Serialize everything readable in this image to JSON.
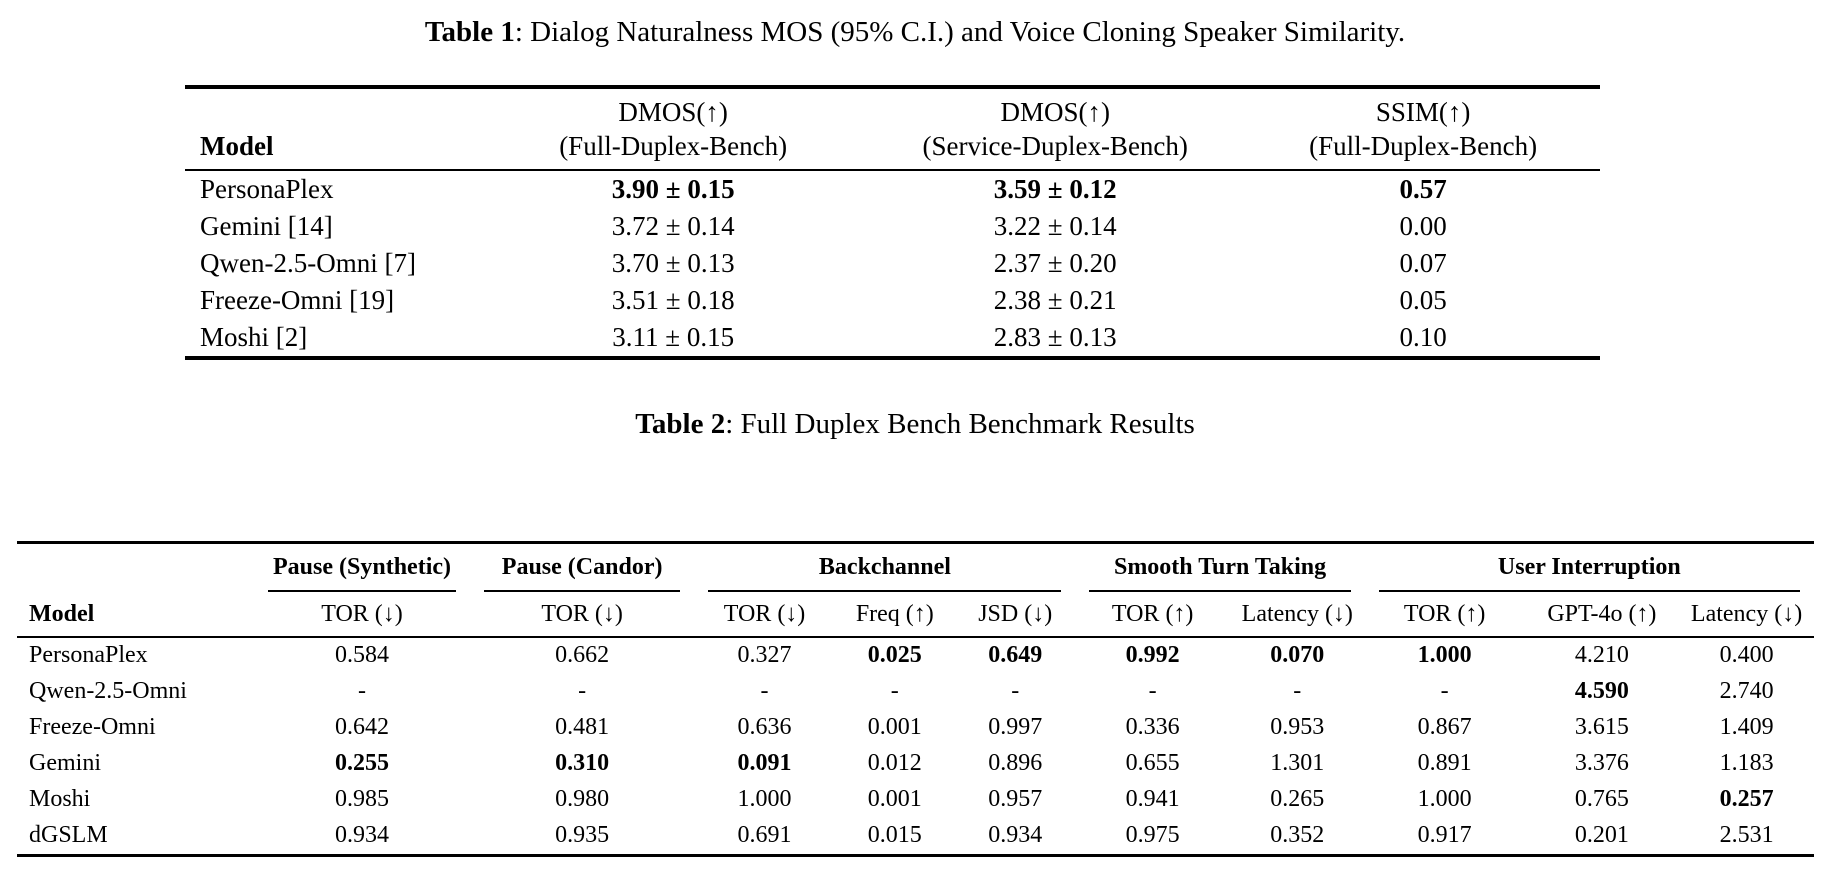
{
  "page": {
    "background": "#ffffff",
    "text_color": "#000000"
  },
  "table1": {
    "caption": {
      "label": "Table 1",
      "rest": ": Dialog Naturalness MOS (95% C.I.) and Voice Cloning Speaker Similarity."
    },
    "header": {
      "model": "Model",
      "cols": [
        {
          "line1": "DMOS(↑)",
          "line2": "(Full-Duplex-Bench)"
        },
        {
          "line1": "DMOS(↑)",
          "line2": "(Service-Duplex-Bench)"
        },
        {
          "line1": "SSIM(↑)",
          "line2": "(Full-Duplex-Bench)"
        }
      ]
    },
    "rows": [
      {
        "model": "PersonaPlex",
        "cells": [
          {
            "text": "3.90 ± 0.15",
            "bold": true
          },
          {
            "text": "3.59 ± 0.12",
            "bold": true
          },
          {
            "text": "0.57",
            "bold": true
          }
        ]
      },
      {
        "model": "Gemini [14]",
        "cells": [
          {
            "text": "3.72 ± 0.14",
            "bold": false
          },
          {
            "text": "3.22 ± 0.14",
            "bold": false
          },
          {
            "text": "0.00",
            "bold": false
          }
        ]
      },
      {
        "model": "Qwen-2.5-Omni [7]",
        "cells": [
          {
            "text": "3.70 ± 0.13",
            "bold": false
          },
          {
            "text": "2.37 ± 0.20",
            "bold": false
          },
          {
            "text": "0.07",
            "bold": false
          }
        ]
      },
      {
        "model": "Freeze-Omni [19]",
        "cells": [
          {
            "text": "3.51 ± 0.18",
            "bold": false
          },
          {
            "text": "2.38 ± 0.21",
            "bold": false
          },
          {
            "text": "0.05",
            "bold": false
          }
        ]
      },
      {
        "model": "Moshi [2]",
        "cells": [
          {
            "text": "3.11 ± 0.15",
            "bold": false
          },
          {
            "text": "2.83 ± 0.13",
            "bold": false
          },
          {
            "text": "0.10",
            "bold": false
          }
        ]
      }
    ]
  },
  "table2": {
    "caption": {
      "label": "Table 2",
      "rest": ": Full Duplex Bench Benchmark Results"
    },
    "header": {
      "model": "Model",
      "groups": [
        {
          "label": "Pause (Synthetic)"
        },
        {
          "label": "Pause (Candor)"
        },
        {
          "label": "Backchannel"
        },
        {
          "label": "Smooth Turn Taking"
        },
        {
          "label": "User Interruption"
        }
      ],
      "subheaders": [
        "TOR (↓)",
        "TOR (↓)",
        "TOR (↓)",
        "Freq (↑)",
        "JSD (↓)",
        "TOR (↑)",
        "Latency (↓)",
        "TOR (↑)",
        "GPT-4o (↑)",
        "Latency (↓)"
      ]
    },
    "rows": [
      {
        "model": "PersonaPlex",
        "cells": [
          {
            "text": "0.584",
            "bold": false
          },
          {
            "text": "0.662",
            "bold": false
          },
          {
            "text": "0.327",
            "bold": false
          },
          {
            "text": "0.025",
            "bold": true
          },
          {
            "text": "0.649",
            "bold": true
          },
          {
            "text": "0.992",
            "bold": true
          },
          {
            "text": "0.070",
            "bold": true
          },
          {
            "text": "1.000",
            "bold": true
          },
          {
            "text": "4.210",
            "bold": false
          },
          {
            "text": "0.400",
            "bold": false
          }
        ]
      },
      {
        "model": "Qwen-2.5-Omni",
        "cells": [
          {
            "text": "-",
            "bold": false
          },
          {
            "text": "-",
            "bold": false
          },
          {
            "text": "-",
            "bold": false
          },
          {
            "text": "-",
            "bold": false
          },
          {
            "text": "-",
            "bold": false
          },
          {
            "text": "-",
            "bold": false
          },
          {
            "text": "-",
            "bold": false
          },
          {
            "text": "-",
            "bold": false
          },
          {
            "text": "4.590",
            "bold": true
          },
          {
            "text": "2.740",
            "bold": false
          }
        ]
      },
      {
        "model": "Freeze-Omni",
        "cells": [
          {
            "text": "0.642",
            "bold": false
          },
          {
            "text": "0.481",
            "bold": false
          },
          {
            "text": "0.636",
            "bold": false
          },
          {
            "text": "0.001",
            "bold": false
          },
          {
            "text": "0.997",
            "bold": false
          },
          {
            "text": "0.336",
            "bold": false
          },
          {
            "text": "0.953",
            "bold": false
          },
          {
            "text": "0.867",
            "bold": false
          },
          {
            "text": "3.615",
            "bold": false
          },
          {
            "text": "1.409",
            "bold": false
          }
        ]
      },
      {
        "model": "Gemini",
        "cells": [
          {
            "text": "0.255",
            "bold": true
          },
          {
            "text": "0.310",
            "bold": true
          },
          {
            "text": "0.091",
            "bold": true
          },
          {
            "text": "0.012",
            "bold": false
          },
          {
            "text": "0.896",
            "bold": false
          },
          {
            "text": "0.655",
            "bold": false
          },
          {
            "text": "1.301",
            "bold": false
          },
          {
            "text": "0.891",
            "bold": false
          },
          {
            "text": "3.376",
            "bold": false
          },
          {
            "text": "1.183",
            "bold": false
          }
        ]
      },
      {
        "model": "Moshi",
        "cells": [
          {
            "text": "0.985",
            "bold": false
          },
          {
            "text": "0.980",
            "bold": false
          },
          {
            "text": "1.000",
            "bold": false
          },
          {
            "text": "0.001",
            "bold": false
          },
          {
            "text": "0.957",
            "bold": false
          },
          {
            "text": "0.941",
            "bold": false
          },
          {
            "text": "0.265",
            "bold": false
          },
          {
            "text": "1.000",
            "bold": false
          },
          {
            "text": "0.765",
            "bold": false
          },
          {
            "text": "0.257",
            "bold": true
          }
        ]
      },
      {
        "model": "dGSLM",
        "cells": [
          {
            "text": "0.934",
            "bold": false
          },
          {
            "text": "0.935",
            "bold": false
          },
          {
            "text": "0.691",
            "bold": false
          },
          {
            "text": "0.015",
            "bold": false
          },
          {
            "text": "0.934",
            "bold": false
          },
          {
            "text": "0.975",
            "bold": false
          },
          {
            "text": "0.352",
            "bold": false
          },
          {
            "text": "0.917",
            "bold": false
          },
          {
            "text": "0.201",
            "bold": false
          },
          {
            "text": "2.531",
            "bold": false
          }
        ]
      }
    ]
  }
}
